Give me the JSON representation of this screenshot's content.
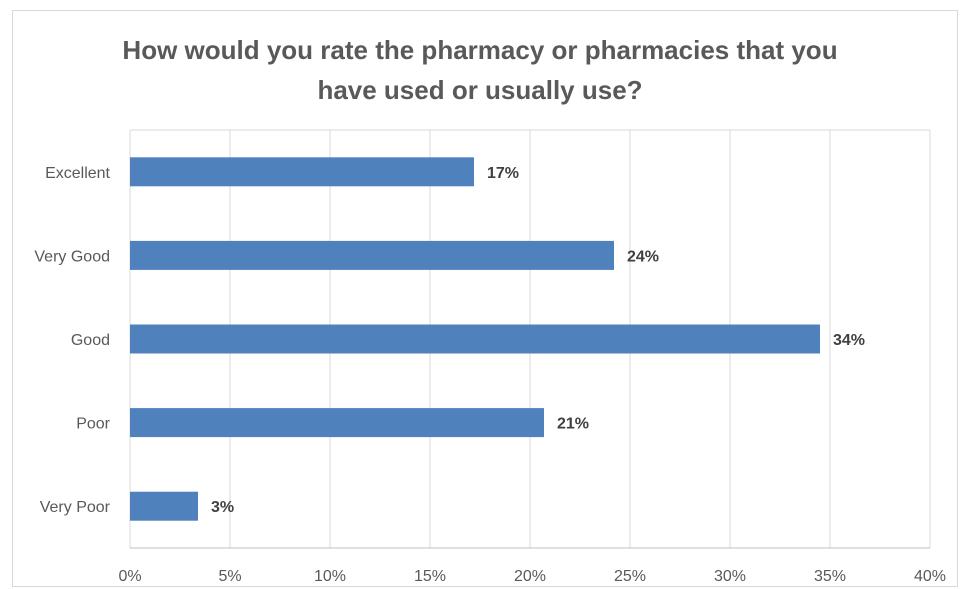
{
  "chart_data": {
    "type": "bar",
    "orientation": "horizontal",
    "title": "How would you rate the pharmacy or pharmacies that you\nhave used or usually use?",
    "categories": [
      "Excellent",
      "Very Good",
      "Good",
      "Poor",
      "Very Poor"
    ],
    "values": [
      17.2,
      24.2,
      34.5,
      20.7,
      3.4
    ],
    "data_labels": [
      "17%",
      "24%",
      "34%",
      "21%",
      "3%"
    ],
    "xlim": [
      0,
      40
    ],
    "x_ticks": [
      0,
      5,
      10,
      15,
      20,
      25,
      30,
      35,
      40
    ],
    "x_tick_labels": [
      "0%",
      "5%",
      "10%",
      "15%",
      "20%",
      "25%",
      "30%",
      "35%",
      "40%"
    ],
    "grid": true,
    "legend": "none",
    "bar_color": "#4f81bd",
    "grid_color": "#d9d9d9"
  }
}
